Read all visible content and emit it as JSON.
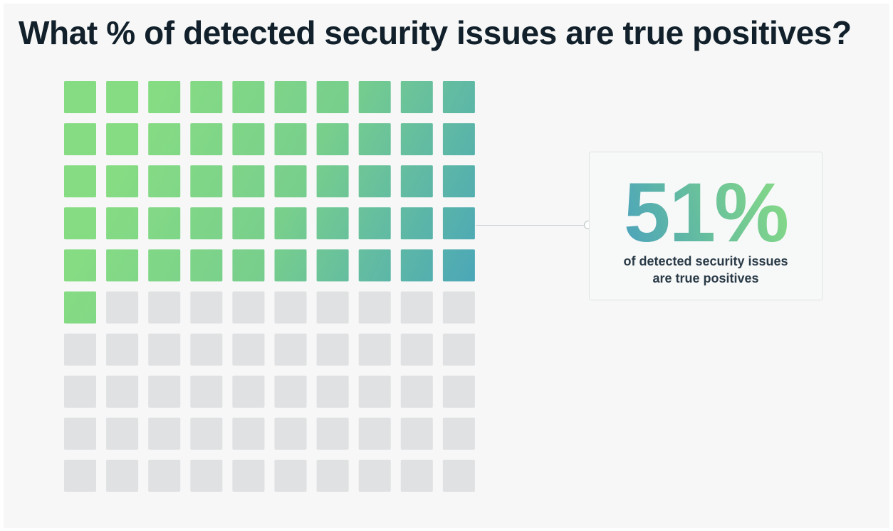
{
  "title": "What % of detected security issues are true positives?",
  "highlight": {
    "value_text": "51%",
    "caption_line1": "of detected security issues",
    "caption_line2": "are true positives"
  },
  "colors": {
    "background": "#f6f7f6",
    "empty_cell": "#dfe1e3",
    "gradient_start": "#86dc83",
    "gradient_end": "#4aa6b9",
    "title": "#11202b"
  },
  "chart_data": {
    "type": "waffle",
    "rows": 10,
    "columns": 10,
    "total": 100,
    "filled": 51,
    "fill_order": "row-major, top-left to bottom-right",
    "title": "What % of detected security issues are true positives?",
    "annotation": "51% of detected security issues are true positives"
  }
}
